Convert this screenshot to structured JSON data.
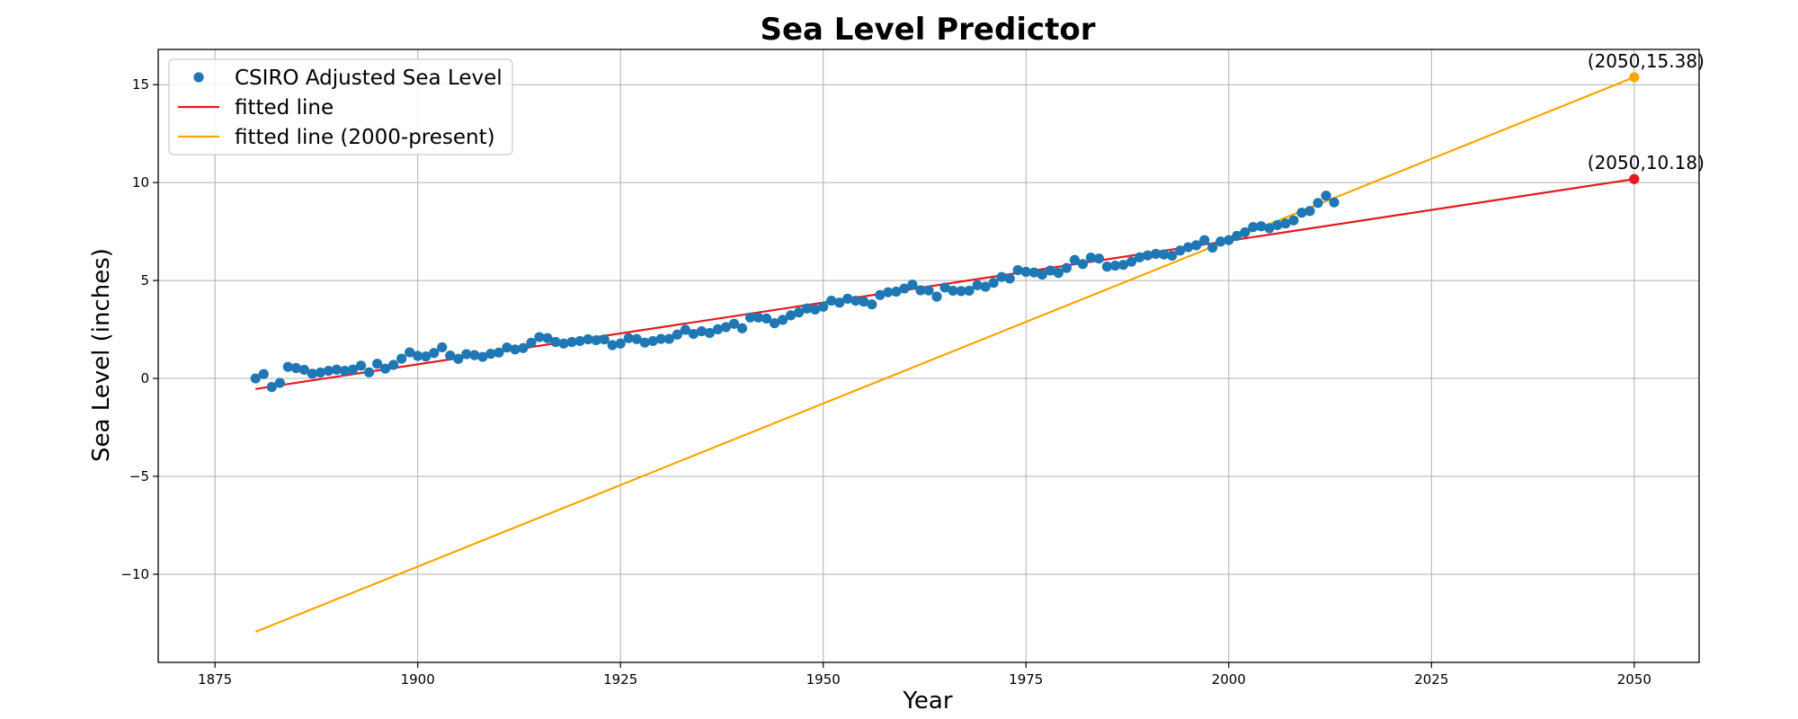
{
  "chart_data": {
    "type": "scatter",
    "title": "Sea Level Predictor",
    "xlabel": "Year",
    "ylabel": "Sea Level (inches)",
    "xlim": [
      1868,
      2058
    ],
    "ylim": [
      -14.5,
      16.8
    ],
    "xticks": [
      1875,
      1900,
      1925,
      1950,
      1975,
      2000,
      2025,
      2050
    ],
    "yticks": [
      -10,
      -5,
      0,
      5,
      10,
      15
    ],
    "grid": true,
    "legend_position": "upper left",
    "series": [
      {
        "name": "CSIRO Adjusted Sea Level",
        "kind": "scatter",
        "color": "#1f77b4",
        "x": [
          1880,
          1881,
          1882,
          1883,
          1884,
          1885,
          1886,
          1887,
          1888,
          1889,
          1890,
          1891,
          1892,
          1893,
          1894,
          1895,
          1896,
          1897,
          1898,
          1899,
          1900,
          1901,
          1902,
          1903,
          1904,
          1905,
          1906,
          1907,
          1908,
          1909,
          1910,
          1911,
          1912,
          1913,
          1914,
          1915,
          1916,
          1917,
          1918,
          1919,
          1920,
          1921,
          1922,
          1923,
          1924,
          1925,
          1926,
          1927,
          1928,
          1929,
          1930,
          1931,
          1932,
          1933,
          1934,
          1935,
          1936,
          1937,
          1938,
          1939,
          1940,
          1941,
          1942,
          1943,
          1944,
          1945,
          1946,
          1947,
          1948,
          1949,
          1950,
          1951,
          1952,
          1953,
          1954,
          1955,
          1956,
          1957,
          1958,
          1959,
          1960,
          1961,
          1962,
          1963,
          1964,
          1965,
          1966,
          1967,
          1968,
          1969,
          1970,
          1971,
          1972,
          1973,
          1974,
          1975,
          1976,
          1977,
          1978,
          1979,
          1980,
          1981,
          1982,
          1983,
          1984,
          1985,
          1986,
          1987,
          1988,
          1989,
          1990,
          1991,
          1992,
          1993,
          1994,
          1995,
          1996,
          1997,
          1998,
          1999,
          2000,
          2001,
          2002,
          2003,
          2004,
          2005,
          2006,
          2007,
          2008,
          2009,
          2010,
          2011,
          2012,
          2013
        ],
        "y": [
          0.0,
          0.22,
          -0.44,
          -0.23,
          0.59,
          0.53,
          0.44,
          0.24,
          0.3,
          0.39,
          0.45,
          0.39,
          0.45,
          0.65,
          0.31,
          0.75,
          0.5,
          0.69,
          1.01,
          1.33,
          1.15,
          1.12,
          1.3,
          1.59,
          1.17,
          1.0,
          1.24,
          1.19,
          1.1,
          1.26,
          1.32,
          1.58,
          1.48,
          1.55,
          1.82,
          2.11,
          2.06,
          1.86,
          1.78,
          1.86,
          1.91,
          2.0,
          1.95,
          1.99,
          1.7,
          1.78,
          2.06,
          2.01,
          1.83,
          1.91,
          2.02,
          2.02,
          2.24,
          2.48,
          2.27,
          2.41,
          2.32,
          2.51,
          2.62,
          2.79,
          2.56,
          3.11,
          3.11,
          3.06,
          2.82,
          2.99,
          3.22,
          3.37,
          3.57,
          3.52,
          3.66,
          3.97,
          3.87,
          4.07,
          3.97,
          3.92,
          3.78,
          4.26,
          4.4,
          4.43,
          4.59,
          4.79,
          4.5,
          4.49,
          4.18,
          4.64,
          4.48,
          4.46,
          4.48,
          4.76,
          4.68,
          4.88,
          5.18,
          5.1,
          5.53,
          5.44,
          5.41,
          5.3,
          5.51,
          5.39,
          5.64,
          6.05,
          5.84,
          6.17,
          6.12,
          5.71,
          5.76,
          5.8,
          5.96,
          6.18,
          6.28,
          6.36,
          6.33,
          6.27,
          6.53,
          6.7,
          6.8,
          7.06,
          6.68,
          6.99,
          7.06,
          7.28,
          7.46,
          7.73,
          7.77,
          7.67,
          7.83,
          7.91,
          8.07,
          8.46,
          8.55,
          8.96,
          9.33,
          8.99
        ]
      },
      {
        "name": "fitted line",
        "kind": "line",
        "color": "#e31a1c",
        "x": [
          1880,
          2050
        ],
        "y": [
          -0.54,
          10.18
        ]
      },
      {
        "name": "fitted line (2000-present)",
        "kind": "line",
        "color": "#ffa500",
        "x": [
          1880,
          2050
        ],
        "y": [
          -12.94,
          15.38
        ]
      }
    ],
    "annotations": [
      {
        "text": "(2050,15.38)",
        "x": 2050,
        "y": 15.38,
        "color": "#ffa500"
      },
      {
        "text": "(2050,10.18)",
        "x": 2050,
        "y": 10.18,
        "color": "#e31a1c"
      }
    ]
  }
}
